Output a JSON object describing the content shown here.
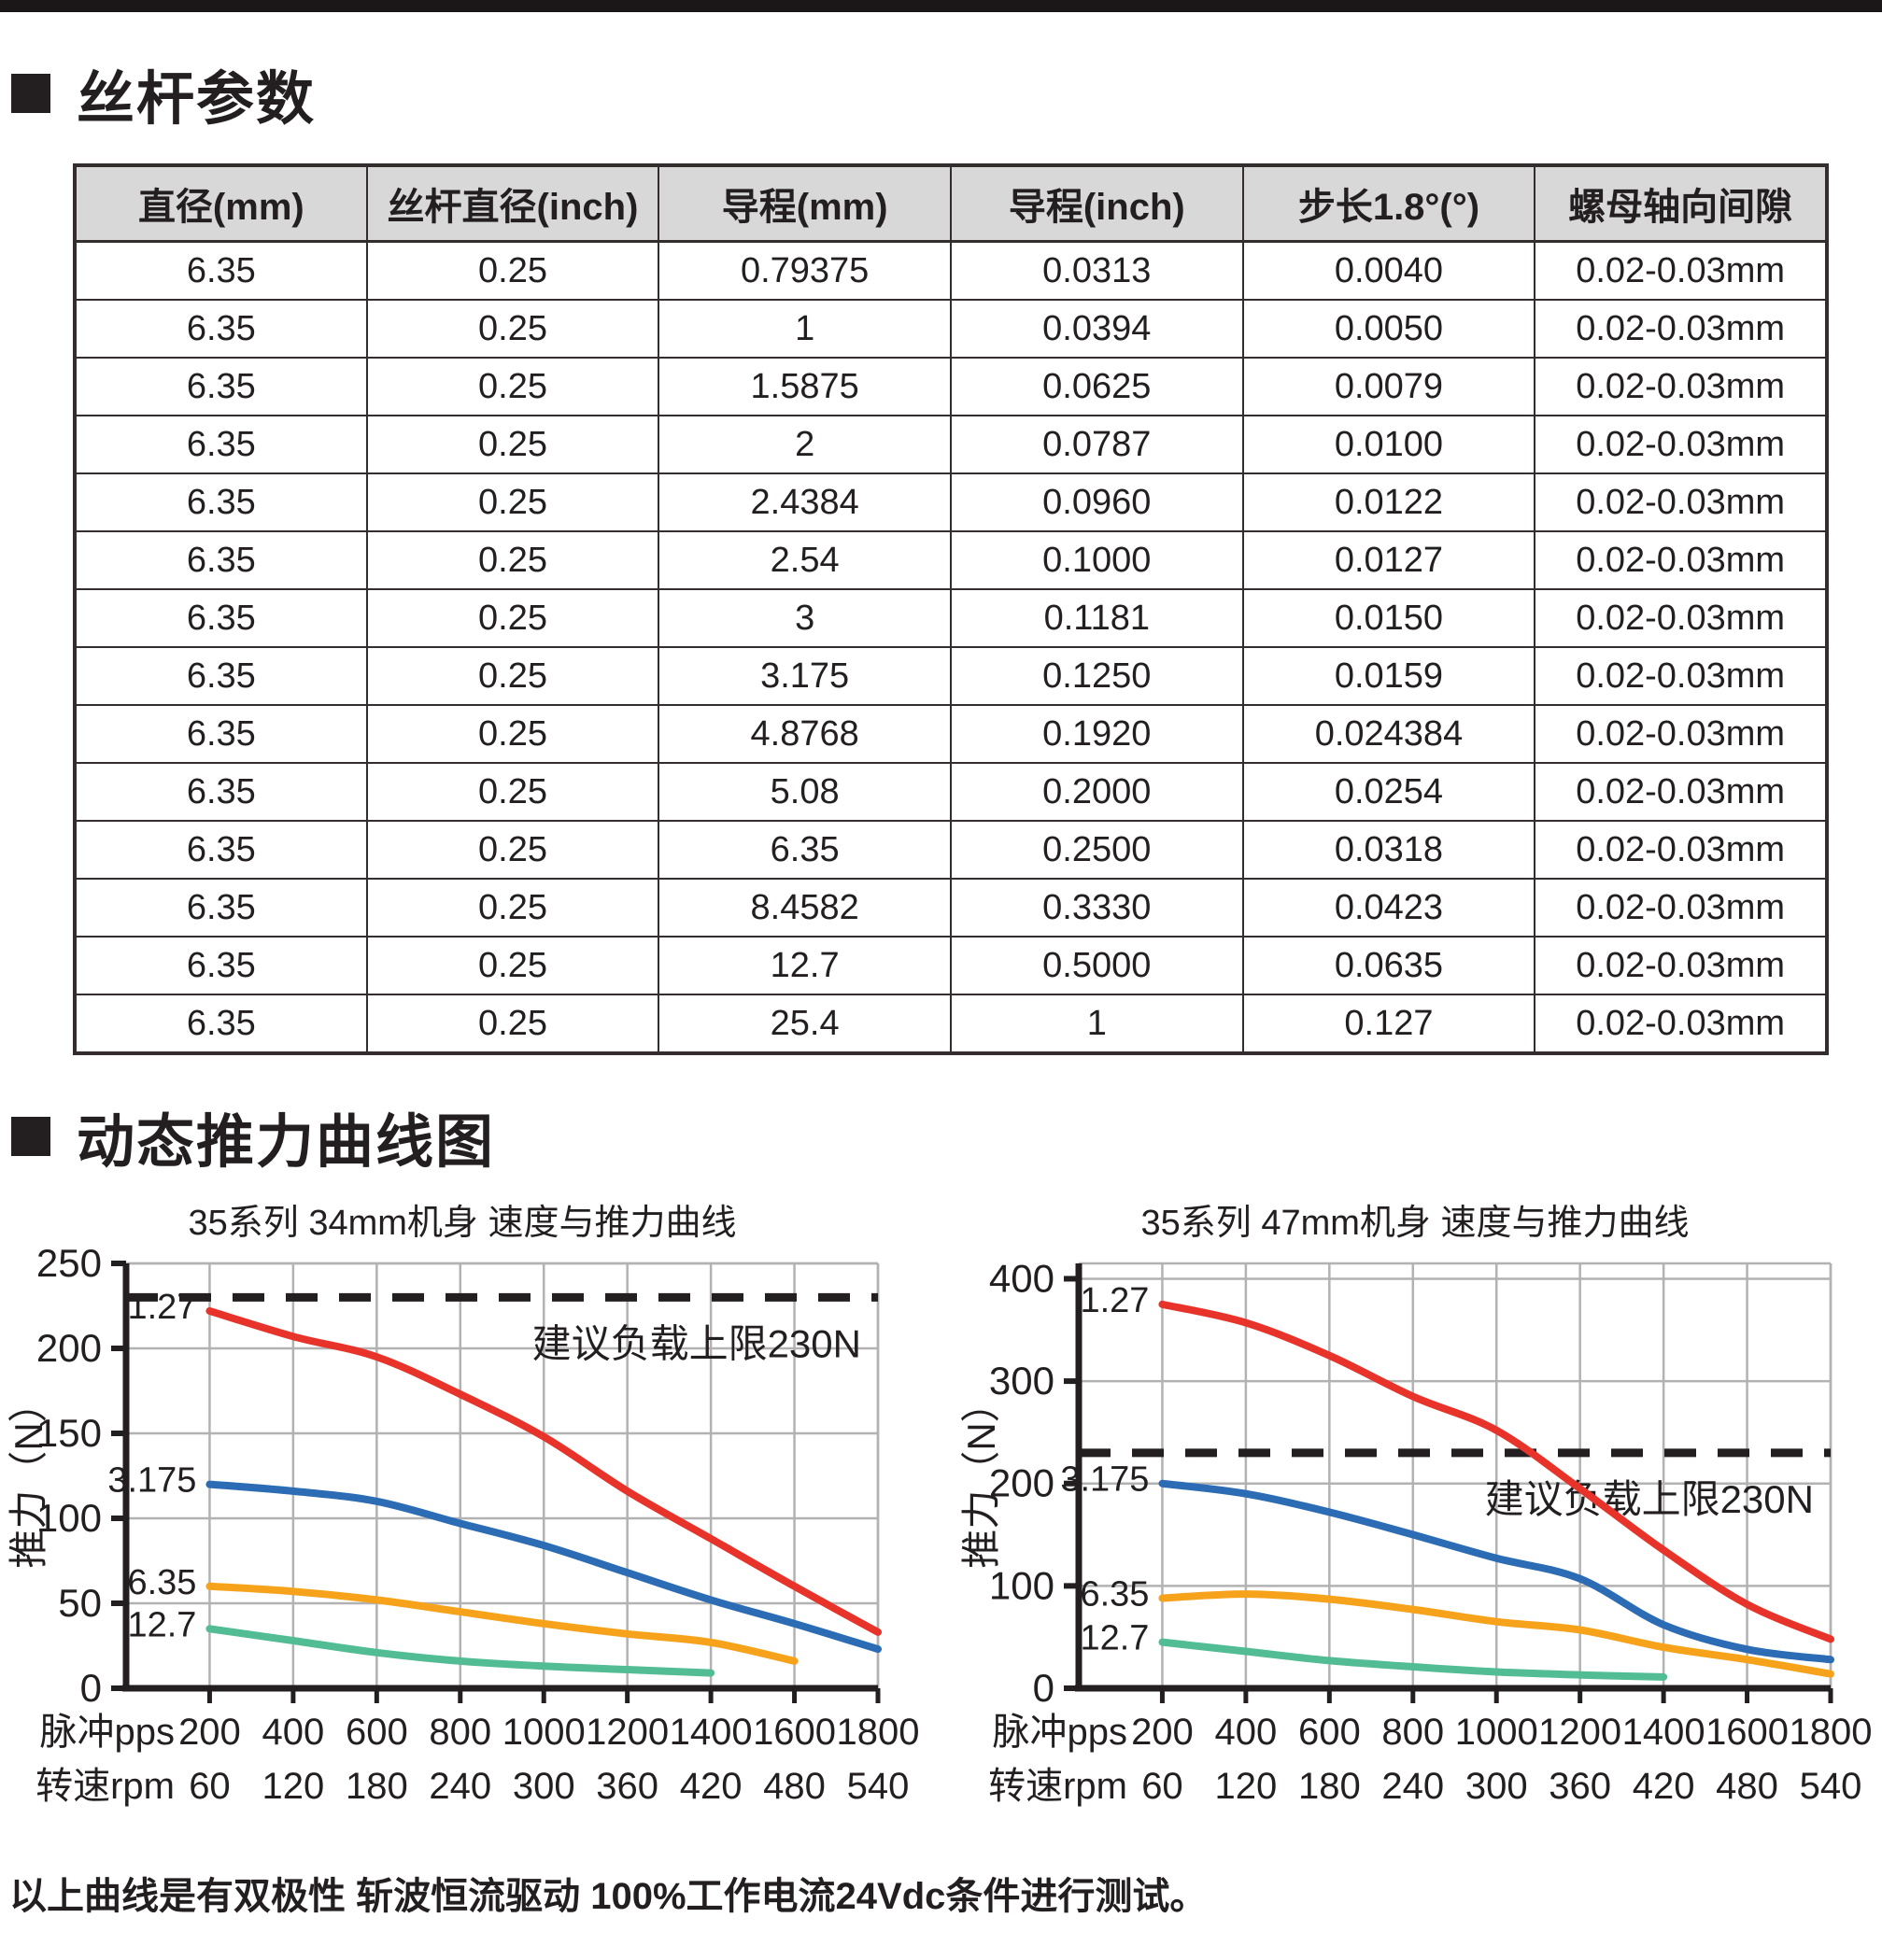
{
  "sections": [
    {
      "title": "丝杆参数"
    },
    {
      "title": "动态推力曲线图"
    }
  ],
  "table": {
    "headers": [
      "直径(mm)",
      "丝杆直径(inch)",
      "导程(mm)",
      "导程(inch)",
      "步长1.8°(°)",
      "螺母轴向间隙"
    ],
    "rows": [
      [
        "6.35",
        "0.25",
        "0.79375",
        "0.0313",
        "0.0040",
        "0.02-0.03mm"
      ],
      [
        "6.35",
        "0.25",
        "1",
        "0.0394",
        "0.0050",
        "0.02-0.03mm"
      ],
      [
        "6.35",
        "0.25",
        "1.5875",
        "0.0625",
        "0.0079",
        "0.02-0.03mm"
      ],
      [
        "6.35",
        "0.25",
        "2",
        "0.0787",
        "0.0100",
        "0.02-0.03mm"
      ],
      [
        "6.35",
        "0.25",
        "2.4384",
        "0.0960",
        "0.0122",
        "0.02-0.03mm"
      ],
      [
        "6.35",
        "0.25",
        "2.54",
        "0.1000",
        "0.0127",
        "0.02-0.03mm"
      ],
      [
        "6.35",
        "0.25",
        "3",
        "0.1181",
        "0.0150",
        "0.02-0.03mm"
      ],
      [
        "6.35",
        "0.25",
        "3.175",
        "0.1250",
        "0.0159",
        "0.02-0.03mm"
      ],
      [
        "6.35",
        "0.25",
        "4.8768",
        "0.1920",
        "0.024384",
        "0.02-0.03mm"
      ],
      [
        "6.35",
        "0.25",
        "5.08",
        "0.2000",
        "0.0254",
        "0.02-0.03mm"
      ],
      [
        "6.35",
        "0.25",
        "6.35",
        "0.2500",
        "0.0318",
        "0.02-0.03mm"
      ],
      [
        "6.35",
        "0.25",
        "8.4582",
        "0.3330",
        "0.0423",
        "0.02-0.03mm"
      ],
      [
        "6.35",
        "0.25",
        "12.7",
        "0.5000",
        "0.0635",
        "0.02-0.03mm"
      ],
      [
        "6.35",
        "0.25",
        "25.4",
        "1",
        "0.127",
        "0.02-0.03mm"
      ]
    ]
  },
  "chart_data": [
    {
      "type": "line",
      "title": "35系列 34mm机身 速度与推力曲线",
      "ylabel": "推力（N）",
      "ylim": [
        0,
        250
      ],
      "ytick_step": 50,
      "ytop_value": 250,
      "threshold_value": 230,
      "threshold_label": "建议负载上限230N",
      "x_axis": {
        "pps_label": "脉冲pps",
        "rpm_label": "转速rpm",
        "pps": [
          200,
          400,
          600,
          800,
          1000,
          1200,
          1400,
          1600,
          1800
        ],
        "rpm": [
          60,
          120,
          180,
          240,
          300,
          360,
          420,
          480,
          540
        ]
      },
      "series": [
        {
          "name": "1.27",
          "color": "#e8332a",
          "values": [
            222,
            207,
            195,
            173,
            148,
            116,
            88,
            60,
            33
          ]
        },
        {
          "name": "3.175",
          "color": "#2b6cb4",
          "values": [
            120,
            116,
            110,
            97,
            84,
            68,
            52,
            38,
            23
          ]
        },
        {
          "name": "6.35",
          "color": "#f7a21b",
          "values": [
            60,
            57,
            52,
            45,
            38,
            32,
            27,
            16
          ]
        },
        {
          "name": "12.7",
          "color": "#52bd95",
          "values": [
            35,
            28,
            21,
            16,
            13,
            11,
            9
          ]
        }
      ]
    },
    {
      "type": "line",
      "title": "35系列 47mm机身 速度与推力曲线",
      "ylabel": "推力（N）",
      "ylim": [
        0,
        400
      ],
      "ytick_step": 100,
      "ytop_value": 415,
      "threshold_value": 230,
      "threshold_label": "建议负载上限230N",
      "x_axis": {
        "pps_label": "脉冲pps",
        "rpm_label": "转速rpm",
        "pps": [
          200,
          400,
          600,
          800,
          1000,
          1200,
          1400,
          1600,
          1800
        ],
        "rpm": [
          60,
          120,
          180,
          240,
          300,
          360,
          420,
          480,
          540
        ]
      },
      "series": [
        {
          "name": "1.27",
          "color": "#e8332a",
          "values": [
            375,
            357,
            325,
            285,
            252,
            195,
            135,
            82,
            48
          ]
        },
        {
          "name": "3.175",
          "color": "#2b6cb4",
          "values": [
            200,
            190,
            172,
            150,
            127,
            107,
            62,
            38,
            28
          ]
        },
        {
          "name": "6.35",
          "color": "#f7a21b",
          "values": [
            88,
            92,
            87,
            77,
            65,
            57,
            40,
            28,
            14
          ]
        },
        {
          "name": "12.7",
          "color": "#52bd95",
          "values": [
            45,
            36,
            27,
            21,
            16,
            13,
            11
          ]
        }
      ]
    }
  ],
  "footnote": "以上曲线是有双极性 斩波恒流驱动 100%工作电流24Vdc条件进行测试。"
}
